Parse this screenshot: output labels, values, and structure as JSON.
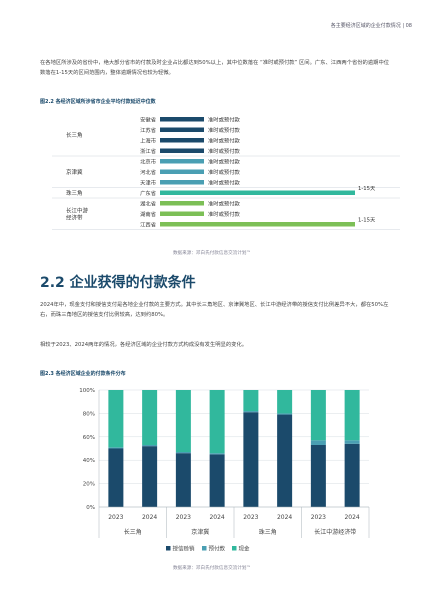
{
  "header": {
    "text": "各主要经济区域的企业付款情况 | 08"
  },
  "intro": {
    "paragraph": "在各地区所涉及的省份中，绝大部分省市的付款及时企业占比都达到50%以上，其中位数落在 “准时或预付款” 区间。广东、江西两个省份的逾期中位数落在1-15天的区间范围内，整体逾期情况也较为轻微。"
  },
  "chart_data": [
    {
      "type": "bar",
      "title": "图2.2 各经济区域所涉省市企业平均付款延迟中位数",
      "categories": [
        "安徽省",
        "江苏省",
        "上海市",
        "浙江省",
        "北京市",
        "河北省",
        "天津市",
        "广东省",
        "湖北省",
        "湖南省",
        "江西省"
      ],
      "groups": [
        {
          "name": "长三角",
          "members": [
            "安徽省",
            "江苏省",
            "上海市",
            "浙江省"
          ],
          "color": "#1b4a6b"
        },
        {
          "name": "京津冀",
          "members": [
            "北京市",
            "河北省",
            "天津市"
          ],
          "color": "#4a9fb3"
        },
        {
          "name": "珠三角",
          "members": [
            "广东省"
          ],
          "color": "#31b89d"
        },
        {
          "name": "长江中游经济带",
          "members": [
            "湖北省",
            "湖南省",
            "江西省"
          ],
          "color": "#7cbf56"
        }
      ],
      "labels": [
        "准时或预付款",
        "准时或预付款",
        "准时或预付款",
        "准时或预付款",
        "准时或预付款",
        "准时或预付款",
        "准时或预付款",
        "1-15天",
        "准时或预付款",
        "准时或预付款",
        "1-15天"
      ],
      "values": [
        0.5,
        0.5,
        0.5,
        0.5,
        0.5,
        0.5,
        0.5,
        2,
        0.5,
        0.5,
        2
      ]
    },
    {
      "type": "bar",
      "stacked": true,
      "title": "图2.3 各经济区域企业的付款条件分布",
      "x": [
        "2023",
        "2024",
        "2023",
        "2024",
        "2023",
        "2024",
        "2023",
        "2024"
      ],
      "groups": [
        "长三角",
        "京津冀",
        "珠三角",
        "长江中游经济带"
      ],
      "ylim": [
        0,
        100
      ],
      "yticks": [
        "0%",
        "20%",
        "40%",
        "60%",
        "80%",
        "100%"
      ],
      "series": [
        {
          "name": "授信赊销",
          "color": "#1b4a6b",
          "values": [
            50,
            52,
            46,
            45,
            81,
            79,
            53,
            54
          ]
        },
        {
          "name": "预付款",
          "color": "#4a9fb3",
          "values": [
            1,
            1,
            1,
            1,
            1,
            1,
            4,
            3
          ]
        },
        {
          "name": "现金",
          "color": "#31b89d",
          "values": [
            49,
            47,
            53,
            54,
            18,
            20,
            43,
            43
          ]
        }
      ]
    }
  ],
  "source1": "数据来源：邓白氏付款信息交流计划™",
  "section": {
    "title": "2.2 企业获得的付款条件"
  },
  "para2": "2024年中，现金支付和授信支付是各地企业付款的主要方式。其中长三角地区、京津冀地区、长江中游经济带的授信支付比例差异不大，都在50%左右，而珠三角地区的授信支付比例较高，达到约80%。",
  "para3": "相较于2023、2024两年的情况，各经济区域的企业付款方式构成没有发生明显的变化。",
  "source2": "数据来源：邓白氏付款信息交流计划™"
}
